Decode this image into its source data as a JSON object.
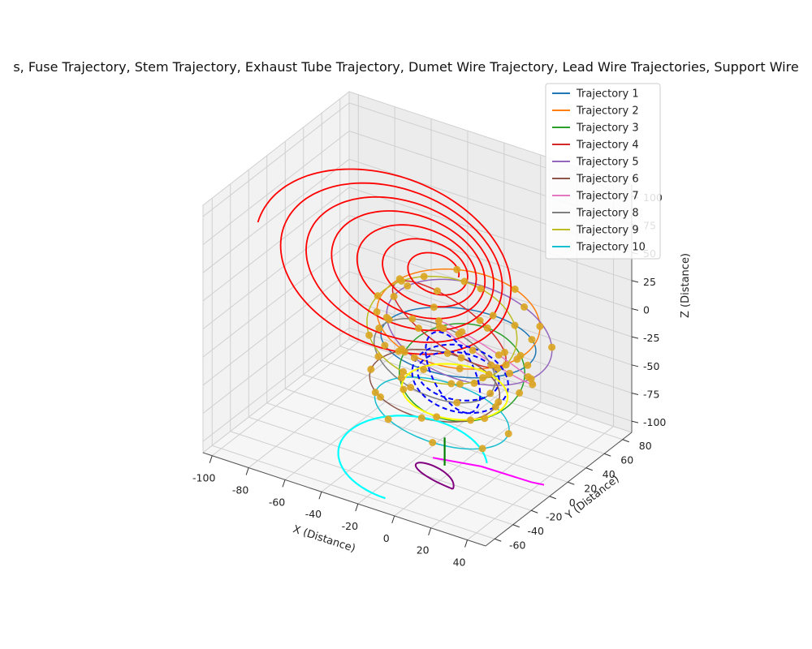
{
  "chart_data": {
    "type": "line",
    "projection": "3d",
    "title": "s, Fuse Trajectory, Stem Trajectory, Exhaust Tube Trajectory, Dumet Wire Trajectory, Lead Wire Trajectories, Support Wire",
    "xlabel": "X (Distance)",
    "ylabel": "Y (Distance)",
    "zlabel": "Z (Distance)",
    "xlim": [
      -105,
      50
    ],
    "ylim": [
      -70,
      90
    ],
    "zlim": [
      -110,
      110
    ],
    "x_ticks": [
      -100,
      -80,
      -60,
      -40,
      -20,
      0,
      20,
      40
    ],
    "y_ticks": [
      -60,
      -40,
      -20,
      0,
      20,
      40,
      60,
      80
    ],
    "z_ticks": [
      -100,
      -75,
      -50,
      -25,
      0,
      25,
      50,
      75,
      100
    ],
    "grid": true,
    "legend_position": "top-right",
    "series": [
      {
        "name": "Trajectory 1",
        "color": "#1f77b4",
        "center": [
          0,
          0,
          0
        ],
        "radius": 38,
        "tilt": 0.0,
        "rot": 0.0
      },
      {
        "name": "Trajectory 2",
        "color": "#ff7f0e",
        "center": [
          -6,
          12,
          10
        ],
        "radius": 40,
        "tilt": 0.35,
        "rot": 0.4
      },
      {
        "name": "Trajectory 3",
        "color": "#2ca02c",
        "center": [
          4,
          -4,
          -22
        ],
        "radius": 35,
        "tilt": 1.2,
        "rot": 1.0
      },
      {
        "name": "Trajectory 4",
        "color": "#d62728",
        "center": [
          -8,
          6,
          8
        ],
        "radius": 36,
        "tilt": 0.7,
        "rot": 2.2
      },
      {
        "name": "Trajectory 5",
        "color": "#9467bd",
        "center": [
          2,
          8,
          5
        ],
        "radius": 42,
        "tilt": 1.5,
        "rot": 0.2
      },
      {
        "name": "Trajectory 6",
        "color": "#8c564b",
        "center": [
          -10,
          -6,
          -40
        ],
        "radius": 32,
        "tilt": 0.2,
        "rot": 0.9
      },
      {
        "name": "Trajectory 7",
        "color": "#e377c2",
        "center": [
          10,
          10,
          -10
        ],
        "radius": 30,
        "tilt": 1.0,
        "rot": 2.8
      },
      {
        "name": "Trajectory 8",
        "color": "#7f7f7f",
        "center": [
          -14,
          2,
          -25
        ],
        "radius": 33,
        "tilt": 0.5,
        "rot": 1.6
      },
      {
        "name": "Trajectory 9",
        "color": "#bcbd22",
        "center": [
          -4,
          -10,
          15
        ],
        "radius": 37,
        "tilt": 0.9,
        "rot": 0.6
      },
      {
        "name": "Trajectory 10",
        "color": "#17becf",
        "center": [
          -2,
          -14,
          -55
        ],
        "radius": 34,
        "tilt": 0.25,
        "rot": 1.9
      }
    ],
    "extra_series": [
      {
        "color": "#ff0000",
        "kind": "spiral",
        "style": "solid"
      },
      {
        "color": "#0000ff",
        "kind": "dashed-loops",
        "style": "dashed"
      },
      {
        "color": "#ffff00",
        "kind": "loop",
        "style": "solid"
      },
      {
        "color": "#ff00ff",
        "kind": "line",
        "style": "solid"
      },
      {
        "color": "#00ffff",
        "kind": "arc",
        "style": "solid"
      },
      {
        "color": "#800080",
        "kind": "loop",
        "style": "solid"
      },
      {
        "color": "#008000",
        "kind": "stem",
        "style": "solid"
      }
    ],
    "marker_color": "#daa520"
  }
}
